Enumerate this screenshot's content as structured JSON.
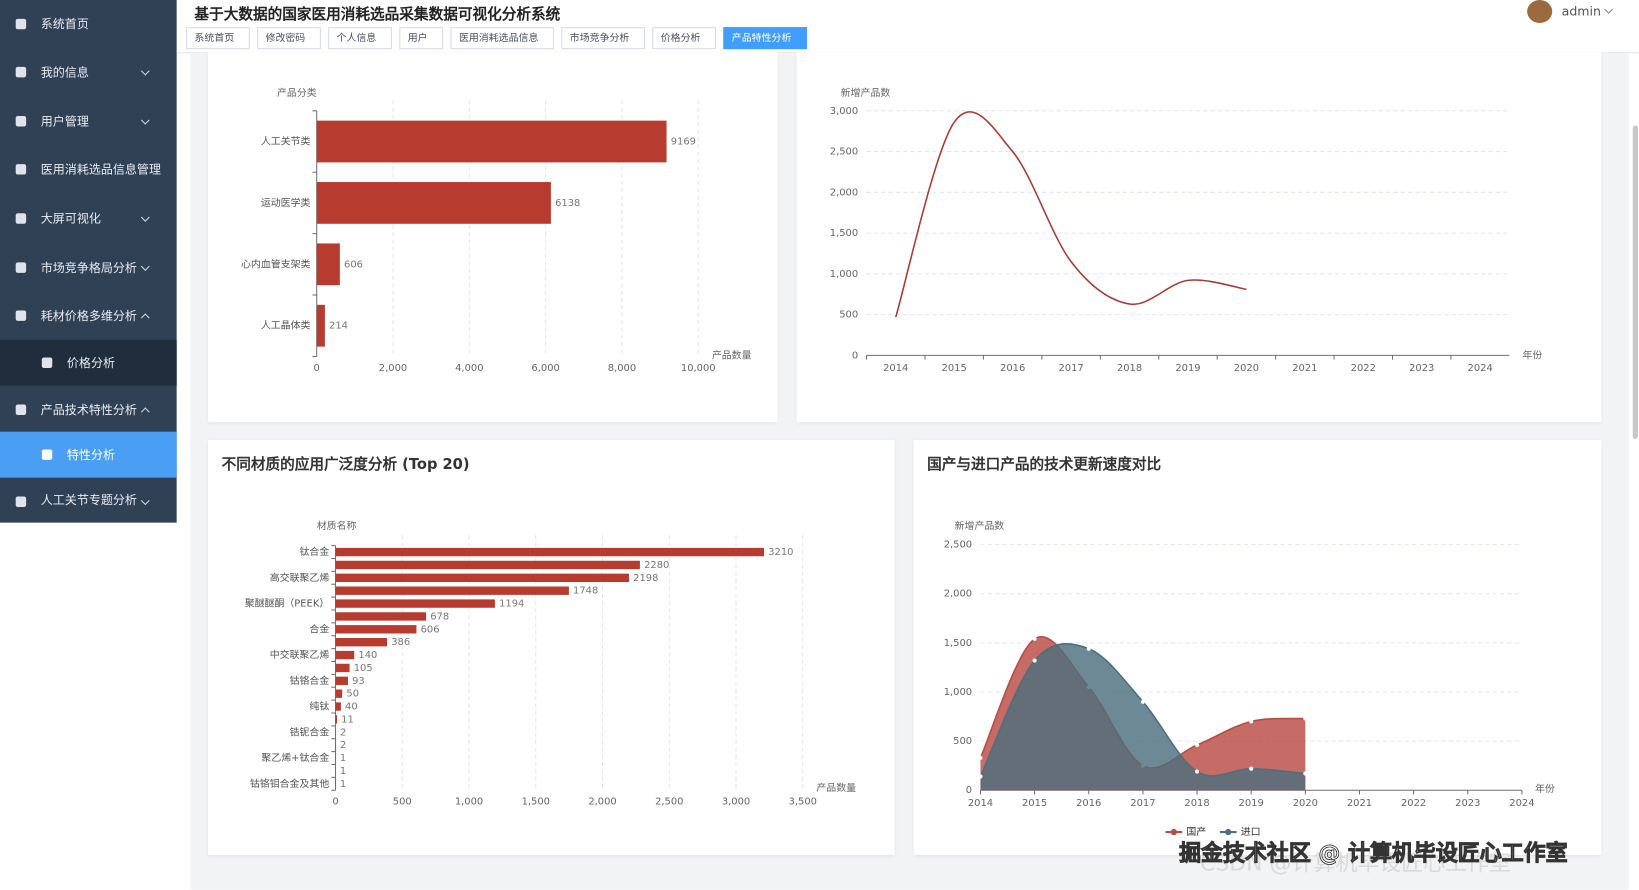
{
  "header": {
    "title": "基于大数据的国家医用消耗选品采集数据可视化分析系统",
    "user": "admin"
  },
  "sidebar": {
    "items": [
      "系统首页",
      "我的信息",
      "用户管理",
      "医用消耗选品信息管理",
      "大屏可视化",
      "市场竞争格局分析",
      "耗材价格多维分析",
      "价格分析",
      "产品技术特性分析",
      "特性分析",
      "人工关节专题分析"
    ]
  },
  "tabs": [
    "系统首页",
    "修改密码",
    "个人信息",
    "用户",
    "医用消耗选品信息",
    "市场竞争分析",
    "价格分析",
    "产品特性分析"
  ],
  "watermark": [
    "CSDN @计算机毕设匠心工作室",
    "掘金技术社区 @ 计算机毕设匠心工作室"
  ],
  "chart_data": [
    {
      "type": "hbar",
      "y_axis_label": "产品分类",
      "x_axis_label": "产品数量",
      "categories": [
        "人工关节类",
        "运动医学类",
        "心内血管支架类",
        "人工晶体类"
      ],
      "values": [
        9169,
        6138,
        606,
        214
      ],
      "color": "#b83b30",
      "xlim": [
        0,
        10000
      ],
      "xticks": [
        0,
        {
          "value": 2000,
          "label": "2,000"
        },
        {
          "value": 4000,
          "label": "4,000"
        },
        {
          "value": 6000,
          "label": "6,000"
        },
        {
          "value": 8000,
          "label": "8,000"
        },
        {
          "value": 10000,
          "label": "10,000"
        }
      ],
      "grid": true
    },
    {
      "type": "line",
      "y_axis_label": "新增产品数",
      "x_axis_label": "年份",
      "categories": [
        "2014",
        "2015",
        "2016",
        "2017",
        "2018",
        "2019",
        "2020",
        "2021",
        "2022",
        "2023",
        "2024"
      ],
      "values": [
        470,
        2860,
        2500,
        1150,
        630,
        920,
        810,
        null,
        null,
        null,
        null
      ],
      "color": "#a93a32",
      "ylim": [
        0,
        3000
      ],
      "yticks": [
        0,
        500,
        {
          "value": 1000,
          "label": "1,000"
        },
        {
          "value": 1500,
          "label": "1,500"
        },
        {
          "value": 2000,
          "label": "2,000"
        },
        {
          "value": 2500,
          "label": "2,500"
        },
        {
          "value": 3000,
          "label": "3,000"
        }
      ],
      "grid": true
    },
    {
      "type": "hbar",
      "title": "不同材质的应用广泛度分析 (Top 20)",
      "y_axis_label": "材质名称",
      "x_axis_label": "产品数量",
      "categories": [
        "钛合金",
        null,
        "高交联聚乙烯",
        null,
        "聚醚醚酮（PEEK）",
        null,
        "合金",
        null,
        "中交联聚乙烯",
        null,
        "钴铬合金",
        null,
        "纯钛",
        null,
        "锆铌合金",
        null,
        "聚乙烯+钛合金",
        null,
        "钴铬钼合金及其他"
      ],
      "values": [
        3210,
        2280,
        2198,
        1748,
        1194,
        678,
        606,
        386,
        140,
        105,
        93,
        50,
        40,
        11,
        2,
        2,
        1,
        1,
        1
      ],
      "color": "#b83b30",
      "xlim": [
        0,
        3500
      ],
      "xticks": [
        0,
        500,
        {
          "value": 1000,
          "label": "1,000"
        },
        {
          "value": 1500,
          "label": "1,500"
        },
        {
          "value": 2000,
          "label": "2,000"
        },
        {
          "value": 2500,
          "label": "2,500"
        },
        {
          "value": 3000,
          "label": "3,000"
        },
        {
          "value": 3500,
          "label": "3,500"
        }
      ],
      "grid": true
    },
    {
      "type": "area",
      "title": "国产与进口产品的技术更新速度对比",
      "y_axis_label": "新增产品数",
      "x_axis_label": "年份",
      "categories": [
        "2014",
        "2015",
        "2016",
        "2017",
        "2018",
        "2019",
        "2020",
        "2021",
        "2022",
        "2023",
        "2024"
      ],
      "series": [
        {
          "name": "国产",
          "color": "#b94a44",
          "values": [
            330,
            1540,
            1050,
            250,
            460,
            700,
            730,
            null,
            null,
            null,
            null
          ]
        },
        {
          "name": "进口",
          "color": "#4d6f7e",
          "values": [
            140,
            1320,
            1440,
            900,
            190,
            220,
            170,
            null,
            null,
            null,
            null
          ]
        }
      ],
      "ylim": [
        0,
        2500
      ],
      "yticks": [
        0,
        500,
        {
          "value": 1000,
          "label": "1,000"
        },
        {
          "value": 1500,
          "label": "1,500"
        },
        {
          "value": 2000,
          "label": "2,000"
        },
        {
          "value": 2500,
          "label": "2,500"
        }
      ],
      "grid": true,
      "legend": "bottom"
    }
  ]
}
